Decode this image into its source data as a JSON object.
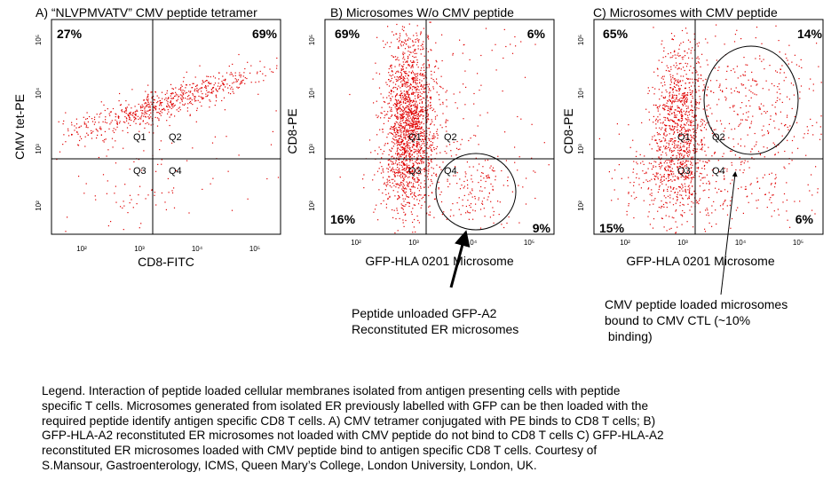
{
  "chart_data": [
    {
      "type": "scatter",
      "title": "A) “NLVPMVATV” CMV peptide tetramer",
      "xlabel": "CD8-FITC",
      "ylabel": "CMV tet-PE",
      "scale": "log",
      "x_ticks": [
        "10²",
        "10³",
        "10⁴",
        "10⁵"
      ],
      "y_ticks": [
        "10²",
        "10³",
        "10⁴",
        "10⁵"
      ],
      "quadrant_labels": [
        "Q1",
        "Q2",
        "Q3",
        "Q4"
      ],
      "quadrant_percents": {
        "upper_left": "27%",
        "upper_right": "69%",
        "lower_left": "",
        "lower_right": ""
      },
      "point_color": "#e00000"
    },
    {
      "type": "scatter",
      "title": "B) Microsomes W/o CMV peptide",
      "xlabel": "GFP-HLA 0201 Microsome",
      "ylabel": "CD8-PE",
      "scale": "log",
      "x_ticks": [
        "10²",
        "10³",
        "10⁴",
        "10⁵"
      ],
      "y_ticks": [
        "10²",
        "10³",
        "10⁴",
        "10⁵"
      ],
      "quadrant_labels": [
        "Q1",
        "Q2",
        "Q3",
        "Q4"
      ],
      "quadrant_percents": {
        "upper_left": "69%",
        "upper_right": "6%",
        "lower_left": "16%",
        "lower_right": "9%"
      },
      "point_color": "#e00000"
    },
    {
      "type": "scatter",
      "title": "C) Microsomes with CMV peptide",
      "xlabel": "GFP-HLA 0201 Microsome",
      "ylabel": "CD8-PE",
      "scale": "log",
      "x_ticks": [
        "10²",
        "10³",
        "10⁴",
        "10⁵"
      ],
      "y_ticks": [
        "10²",
        "10³",
        "10⁴",
        "10⁵"
      ],
      "quadrant_labels": [
        "Q1",
        "Q2",
        "Q3",
        "Q4"
      ],
      "quadrant_percents": {
        "upper_left": "65%",
        "upper_right": "14%",
        "lower_left": "15%",
        "lower_right": "6%"
      },
      "point_color": "#e00000"
    }
  ],
  "annotations": {
    "b_lines": [
      "Peptide unloaded GFP-A2",
      "Reconstituted ER microsomes"
    ],
    "c_lines": [
      "CMV peptide loaded microsomes",
      "bound to CMV CTL (~10%",
      " binding)"
    ]
  },
  "legend": {
    "lines": [
      "Legend. Interaction of peptide loaded cellular membranes isolated from antigen presenting cells with peptide",
      "specific T cells. Microsomes generated from isolated ER previously labelled with GFP can be then loaded with the",
      "required peptide identify antigen  specific CD8 T cells. A) CMV tetramer conjugated with PE binds to CD8 T cells; B)",
      "GFP-HLA-A2 reconstituted ER microsomes not loaded with CMV peptide do not bind to CD8 T cells C) GFP-HLA-A2",
      "reconstituted ER microsomes loaded with CMV peptide bind to antigen specific CD8 T cells. Courtesy of",
      "S.Mansour, Gastroenterology, ICMS, Queen Mary’s College, London University, London, UK."
    ]
  }
}
